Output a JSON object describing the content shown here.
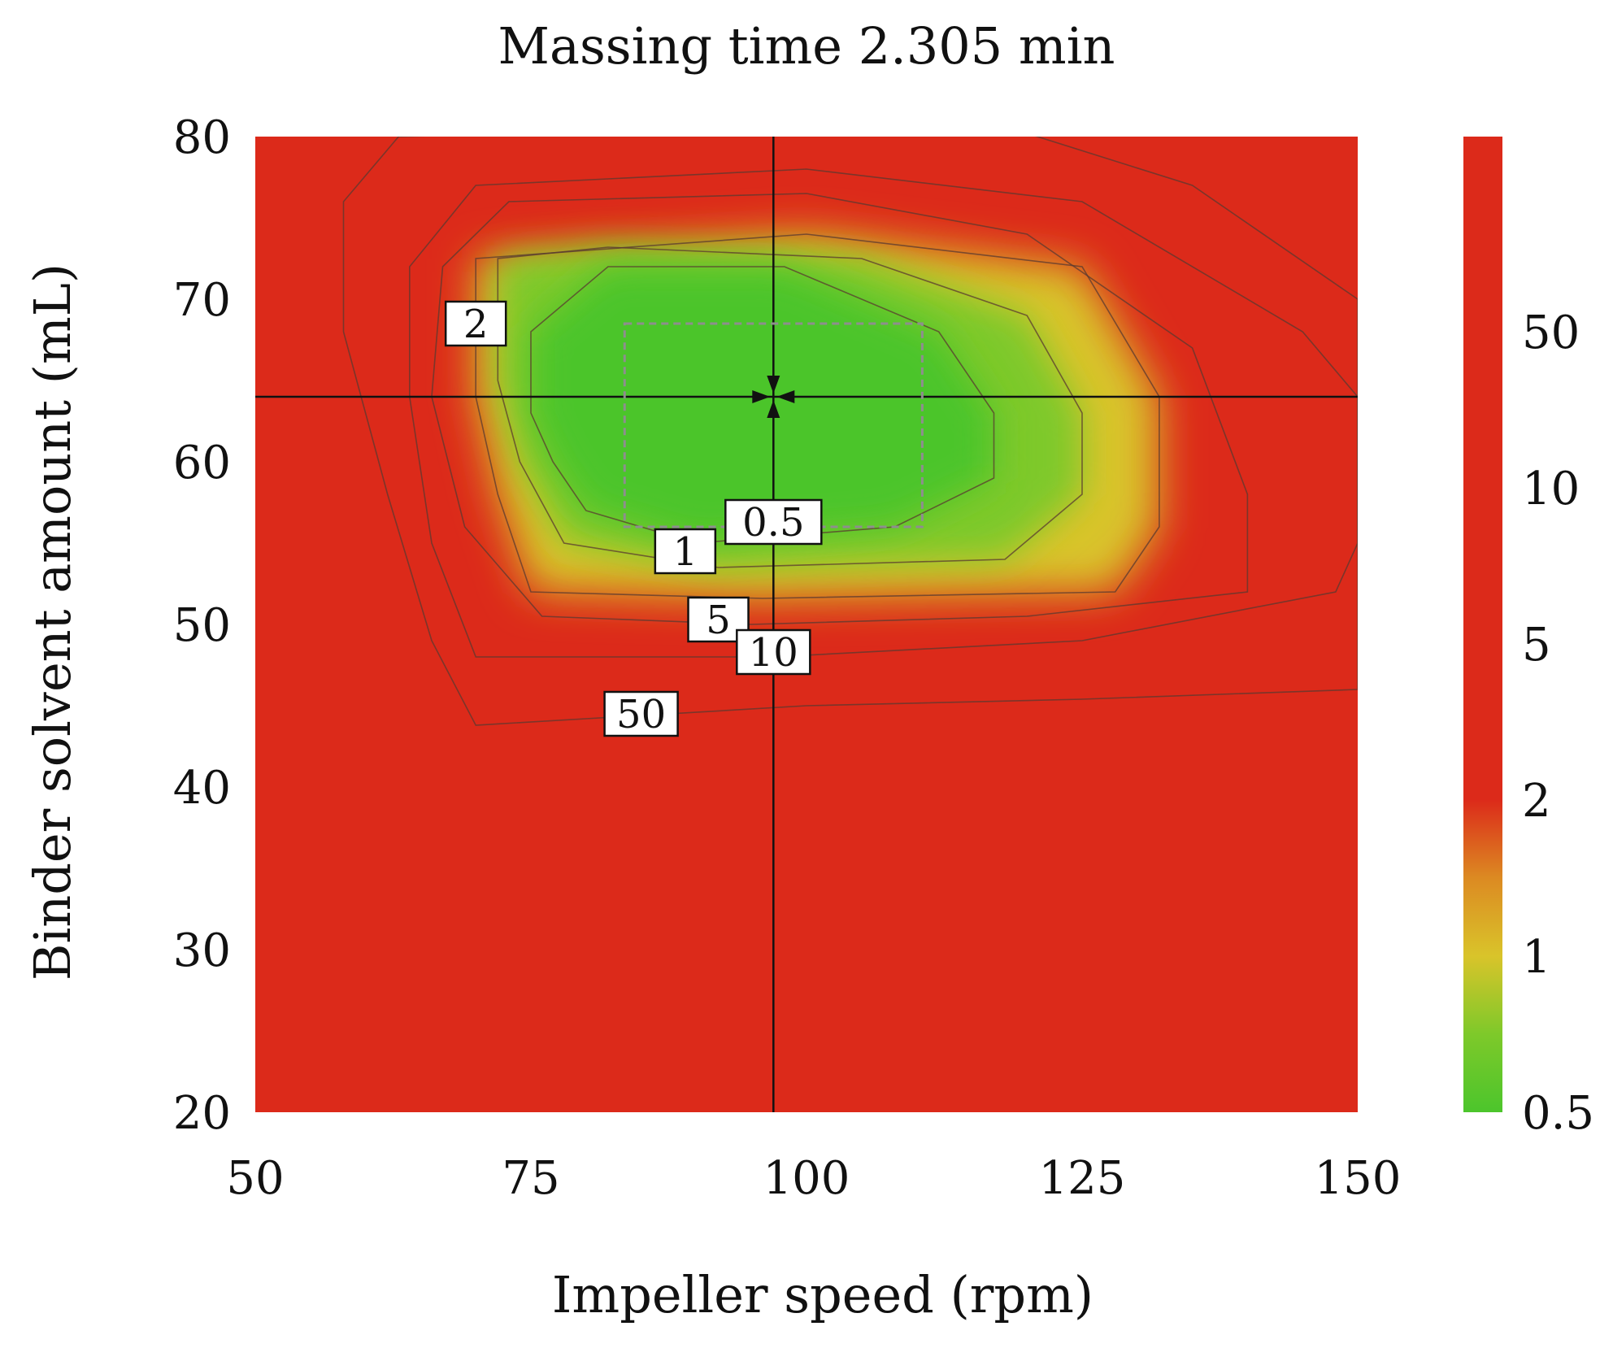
{
  "chart_data": {
    "type": "contour",
    "title": "Massing time 2.305 min",
    "xlabel": "Impeller speed (rpm)",
    "ylabel": "Binder solvent amount (mL)",
    "xlim": [
      50,
      150
    ],
    "ylim": [
      20,
      80
    ],
    "xticks": [
      50,
      75,
      100,
      125,
      150
    ],
    "yticks": [
      20,
      30,
      40,
      50,
      60,
      70,
      80
    ],
    "colorbar": {
      "ticks": [
        {
          "label": "0.5",
          "frac": 0.0
        },
        {
          "label": "1",
          "frac": 0.16
        },
        {
          "label": "2",
          "frac": 0.32
        },
        {
          "label": "5",
          "frac": 0.48
        },
        {
          "label": "10",
          "frac": 0.64
        },
        {
          "label": "50",
          "frac": 0.8
        }
      ],
      "colors": {
        "low": "#4cc52c",
        "mid": "#d9c42a",
        "high": "#dc2a1a"
      }
    },
    "crosshair": {
      "x": 97,
      "y": 64
    },
    "design_space": {
      "x": [
        83.5,
        110.5
      ],
      "y": [
        56,
        68.5
      ]
    },
    "contours": [
      {
        "level": "0.5",
        "points": [
          [
            75,
            63
          ],
          [
            75,
            68
          ],
          [
            82,
            72
          ],
          [
            98,
            72
          ],
          [
            112,
            68
          ],
          [
            117,
            63
          ],
          [
            117,
            59
          ],
          [
            108,
            56
          ],
          [
            90,
            55
          ],
          [
            80,
            57
          ],
          [
            77,
            60
          ]
        ],
        "label": {
          "text": "0.5",
          "x": 97,
          "y": 56.3
        }
      },
      {
        "level": "1",
        "points": [
          [
            72,
            65
          ],
          [
            72,
            72.5
          ],
          [
            82,
            73.2
          ],
          [
            105,
            72.5
          ],
          [
            120,
            69
          ],
          [
            125,
            63
          ],
          [
            125,
            58
          ],
          [
            118,
            54
          ],
          [
            92,
            53.5
          ],
          [
            78,
            55
          ],
          [
            74,
            60
          ]
        ],
        "label": {
          "text": "1",
          "x": 89,
          "y": 54.5
        }
      },
      {
        "level": "2",
        "points": [
          [
            70,
            64
          ],
          [
            70,
            72.5
          ],
          [
            100,
            74
          ],
          [
            125,
            72
          ],
          [
            132,
            64
          ],
          [
            132,
            56
          ],
          [
            128,
            52
          ],
          [
            96,
            51.6
          ],
          [
            75,
            52
          ],
          [
            72,
            58
          ]
        ],
        "label": {
          "text": "2",
          "x": 70,
          "y": 68.5
        }
      },
      {
        "level": "5",
        "points": [
          [
            66,
            64
          ],
          [
            67,
            72
          ],
          [
            73,
            76
          ],
          [
            100,
            76.5
          ],
          [
            120,
            74
          ],
          [
            135,
            67
          ],
          [
            140,
            58
          ],
          [
            140,
            52
          ],
          [
            120,
            50.5
          ],
          [
            95,
            50
          ],
          [
            76,
            50.5
          ],
          [
            69,
            56
          ]
        ],
        "label": {
          "text": "5",
          "x": 92,
          "y": 50.3
        }
      },
      {
        "level": "10",
        "points": [
          [
            64,
            64
          ],
          [
            64,
            72
          ],
          [
            70,
            77
          ],
          [
            100,
            78
          ],
          [
            125,
            76
          ],
          [
            145,
            68
          ],
          [
            150,
            64
          ],
          [
            150,
            55
          ],
          [
            148,
            52
          ],
          [
            125,
            49
          ],
          [
            97,
            48
          ],
          [
            70,
            48
          ],
          [
            66,
            55
          ]
        ],
        "label": {
          "text": "10",
          "x": 97,
          "y": 48.3
        }
      },
      {
        "level": "50",
        "points": [
          [
            58,
            68
          ],
          [
            58,
            76
          ],
          [
            63,
            80
          ],
          [
            75,
            80.2
          ],
          [
            120,
            80.2
          ],
          [
            135,
            77
          ],
          [
            150,
            70
          ],
          [
            150,
            46
          ],
          [
            125,
            45.4
          ],
          [
            100,
            45
          ],
          [
            70,
            43.8
          ],
          [
            66,
            49
          ],
          [
            62,
            58
          ]
        ],
        "label": {
          "text": "50",
          "x": 85,
          "y": 44.5
        }
      }
    ]
  }
}
